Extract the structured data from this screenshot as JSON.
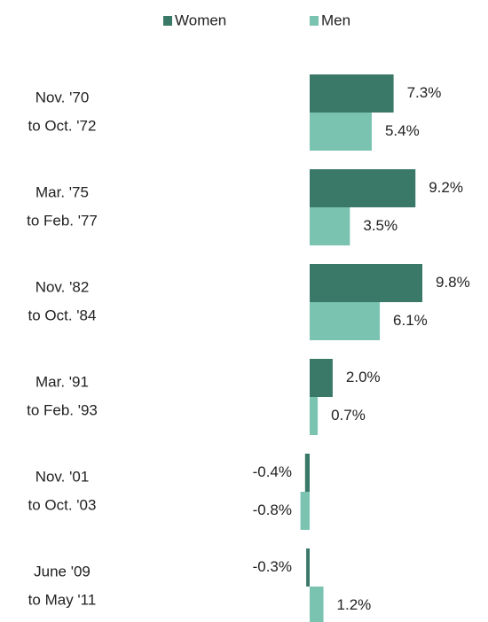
{
  "chart_data": {
    "type": "bar",
    "orientation": "horizontal",
    "categories": [
      [
        "Nov. '70",
        "to Oct. '72"
      ],
      [
        "Mar. '75",
        "to Feb. '77"
      ],
      [
        "Nov. '82",
        "to Oct. '84"
      ],
      [
        "Mar. '91",
        "to Feb. '93"
      ],
      [
        "Nov. '01",
        "to Oct. '03"
      ],
      [
        "June '09",
        "to May '11"
      ]
    ],
    "series": [
      {
        "name": "Women",
        "color": "#3a7868",
        "values": [
          7.3,
          9.2,
          9.8,
          2.0,
          -0.4,
          -0.3
        ],
        "value_labels": [
          "7.3%",
          "9.2%",
          "9.8%",
          "2.0%",
          "-0.4%",
          "-0.3%"
        ]
      },
      {
        "name": "Men",
        "color": "#7bc3b1",
        "values": [
          5.4,
          3.5,
          6.1,
          0.7,
          -0.8,
          1.2
        ],
        "value_labels": [
          "5.4%",
          "3.5%",
          "6.1%",
          "0.7%",
          "-0.8%",
          "1.2%"
        ]
      }
    ],
    "legend": "top"
  }
}
